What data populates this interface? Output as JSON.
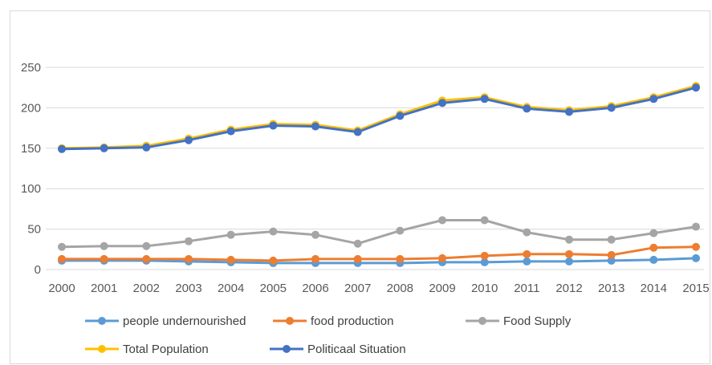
{
  "chart_data": {
    "type": "line",
    "title": "",
    "xlabel": "",
    "ylabel": "",
    "ylim": [
      0,
      250
    ],
    "yticks": [
      0,
      50,
      100,
      150,
      200,
      250
    ],
    "grid": true,
    "legend_position": "bottom",
    "x": [
      "2000",
      "2001",
      "2002",
      "2003",
      "2004",
      "2005",
      "2006",
      "2007",
      "2008",
      "2009",
      "2010",
      "2011",
      "2012",
      "2013",
      "2014",
      "2015"
    ],
    "series": [
      {
        "name": "people undernourished",
        "color": "#5b9bd5",
        "values": [
          11,
          11,
          11,
          10,
          9,
          8,
          8,
          8,
          8,
          9,
          9,
          10,
          10,
          11,
          12,
          14
        ]
      },
      {
        "name": "food production",
        "color": "#ed7d31",
        "values": [
          13,
          13,
          13,
          13,
          12,
          11,
          13,
          13,
          13,
          14,
          17,
          19,
          19,
          18,
          27,
          28
        ]
      },
      {
        "name": "Food Supply",
        "color": "#a5a5a5",
        "values": [
          28,
          29,
          29,
          35,
          43,
          47,
          43,
          32,
          48,
          61,
          61,
          46,
          37,
          37,
          45,
          53
        ]
      },
      {
        "name": "Total Population",
        "color": "#ffc000",
        "values": [
          150,
          151,
          153,
          162,
          173,
          180,
          179,
          172,
          192,
          209,
          213,
          201,
          197,
          202,
          213,
          227
        ]
      },
      {
        "name": "Politicaal Situation",
        "color": "#4472c4",
        "values": [
          149,
          150,
          151,
          160,
          171,
          178,
          177,
          170,
          190,
          206,
          211,
          199,
          195,
          200,
          211,
          225
        ]
      }
    ]
  }
}
